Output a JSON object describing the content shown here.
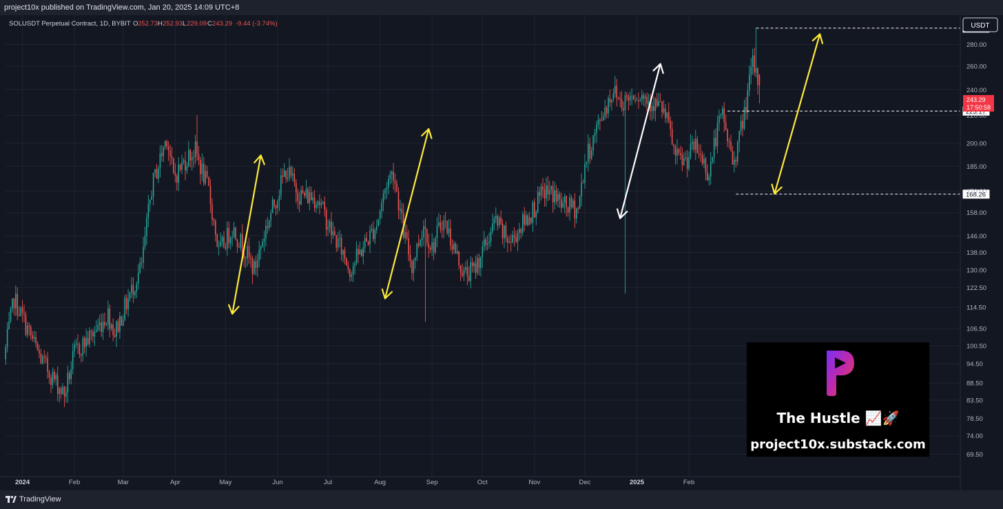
{
  "header": {
    "published_text": "project10x published on TradingView.com, Jan 20, 2025 14:09 UTC+8"
  },
  "legend": {
    "symbol": "SOLUSDT Perpetual Contract, 1D, BYBIT",
    "o_label": "O",
    "o_value": "252.73",
    "h_label": "H",
    "h_value": "252.93",
    "l_label": "L",
    "l_value": "229.09",
    "c_label": "C",
    "c_value": "243.29",
    "change": "-9.44 (-3.74%)"
  },
  "currency_button": "USDT",
  "price_tag": {
    "price": "243.29",
    "countdown": "17:50:58"
  },
  "footer": {
    "brand": "TradingView"
  },
  "promo": {
    "title": "The Hustle 📈🚀",
    "url": "project10x.substack.com"
  },
  "colors": {
    "background": "#131722",
    "up": "#26a69a",
    "down": "#ef5350",
    "yellow_arrow": "#ffeb3b",
    "white_arrow": "#ffffff",
    "price_tag": "#f23645"
  },
  "chart_data": {
    "type": "candlestick",
    "title": "SOLUSDT Perpetual Contract, 1D, BYBIT",
    "y_scale": "log",
    "ylim": [
      67,
      300
    ],
    "y_ticks": [
      "280.00",
      "260.00",
      "240.00",
      "220.00",
      "200.00",
      "185.00",
      "170.00",
      "158.00",
      "146.00",
      "138.00",
      "130.00",
      "122.50",
      "114.50",
      "106.50",
      "100.50",
      "94.50",
      "88.50",
      "83.50",
      "78.50",
      "74.00",
      "69.50"
    ],
    "x_ticks": [
      {
        "label": "2024",
        "day": 0
      },
      {
        "label": "Feb",
        "day": 31
      },
      {
        "label": "Mar",
        "day": 60
      },
      {
        "label": "Apr",
        "day": 91
      },
      {
        "label": "May",
        "day": 121
      },
      {
        "label": "Jun",
        "day": 152
      },
      {
        "label": "Jul",
        "day": 182
      },
      {
        "label": "Aug",
        "day": 213
      },
      {
        "label": "Sep",
        "day": 244
      },
      {
        "label": "Oct",
        "day": 274
      },
      {
        "label": "Nov",
        "day": 305
      },
      {
        "label": "Dec",
        "day": 335
      },
      {
        "label": "2025",
        "day": 366
      },
      {
        "label": "Feb",
        "day": 397
      }
    ],
    "x_domain_days": [
      -10,
      430
    ],
    "start_date": "2024-01-01",
    "grid": true,
    "key_points": [
      {
        "day": -10,
        "price": 96
      },
      {
        "day": -4,
        "price": 118
      },
      {
        "day": 12,
        "price": 96
      },
      {
        "day": 26,
        "price": 85
      },
      {
        "day": 32,
        "price": 98
      },
      {
        "day": 42,
        "price": 104
      },
      {
        "day": 52,
        "price": 112
      },
      {
        "day": 56,
        "price": 105
      },
      {
        "day": 72,
        "price": 132
      },
      {
        "day": 78,
        "price": 172
      },
      {
        "day": 87,
        "price": 205
      },
      {
        "day": 91,
        "price": 178
      },
      {
        "day": 100,
        "price": 192
      },
      {
        "day": 104,
        "price": 195
      },
      {
        "day": 112,
        "price": 170
      },
      {
        "day": 118,
        "price": 138
      },
      {
        "day": 126,
        "price": 150
      },
      {
        "day": 133,
        "price": 140
      },
      {
        "day": 139,
        "price": 130
      },
      {
        "day": 146,
        "price": 150
      },
      {
        "day": 158,
        "price": 183
      },
      {
        "day": 166,
        "price": 168
      },
      {
        "day": 177,
        "price": 166
      },
      {
        "day": 185,
        "price": 148
      },
      {
        "day": 192,
        "price": 138
      },
      {
        "day": 196,
        "price": 130
      },
      {
        "day": 202,
        "price": 138
      },
      {
        "day": 212,
        "price": 152
      },
      {
        "day": 218,
        "price": 175
      },
      {
        "day": 222,
        "price": 182
      },
      {
        "day": 228,
        "price": 148
      },
      {
        "day": 233,
        "price": 132
      },
      {
        "day": 240,
        "price": 152
      },
      {
        "day": 245,
        "price": 140
      },
      {
        "day": 251,
        "price": 154
      },
      {
        "day": 254,
        "price": 150
      },
      {
        "day": 259,
        "price": 138
      },
      {
        "day": 264,
        "price": 128
      },
      {
        "day": 270,
        "price": 130
      },
      {
        "day": 277,
        "price": 142
      },
      {
        "day": 283,
        "price": 154
      },
      {
        "day": 287,
        "price": 147
      },
      {
        "day": 292,
        "price": 143
      },
      {
        "day": 297,
        "price": 150
      },
      {
        "day": 304,
        "price": 158
      },
      {
        "day": 312,
        "price": 170
      },
      {
        "day": 318,
        "price": 168
      },
      {
        "day": 322,
        "price": 162
      },
      {
        "day": 332,
        "price": 160
      },
      {
        "day": 336,
        "price": 187
      },
      {
        "day": 346,
        "price": 220
      },
      {
        "day": 353,
        "price": 240
      },
      {
        "day": 358,
        "price": 230
      },
      {
        "day": 366,
        "price": 238
      },
      {
        "day": 374,
        "price": 232
      },
      {
        "day": 382,
        "price": 225
      },
      {
        "day": 386,
        "price": 212
      },
      {
        "day": 390,
        "price": 190
      },
      {
        "day": 396,
        "price": 188
      },
      {
        "day": 401,
        "price": 198
      },
      {
        "day": 405,
        "price": 192
      },
      {
        "day": 410,
        "price": 180
      },
      {
        "day": 414,
        "price": 205
      },
      {
        "day": 418,
        "price": 221
      },
      {
        "day": 424,
        "price": 188
      },
      {
        "day": 427,
        "price": 198
      },
      {
        "day": 431,
        "price": 222
      },
      {
        "day": 436,
        "price": 262
      },
      {
        "day": 440,
        "price": 243
      }
    ],
    "last_candle": {
      "open": 252.73,
      "high": 252.93,
      "low": 229.09,
      "close": 243.29
    },
    "price_levels": [
      {
        "label": "295.94",
        "value": 295.94
      },
      {
        "label": "223.17",
        "value": 223.17
      },
      {
        "label": "168.26",
        "value": 168.26
      }
    ],
    "annotations": [
      {
        "color": "yellow",
        "from": {
          "day": 125,
          "price": 112
        },
        "to": {
          "day": 142,
          "price": 192
        }
      },
      {
        "color": "yellow",
        "from": {
          "day": 216,
          "price": 118
        },
        "to": {
          "day": 242,
          "price": 210
        }
      },
      {
        "color": "white",
        "from": {
          "day": 356,
          "price": 155
        },
        "to": {
          "day": 380,
          "price": 262
        }
      },
      {
        "color": "yellow",
        "from": {
          "day": 448,
          "price": 168.5
        },
        "to": {
          "day": 475,
          "price": 290
        }
      }
    ]
  }
}
